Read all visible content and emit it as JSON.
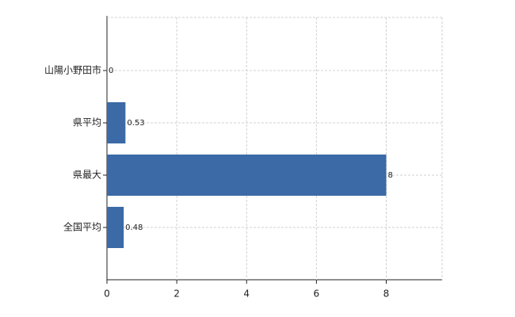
{
  "chart_data": {
    "type": "hbar",
    "categories": [
      "山陽小野田市",
      "県平均",
      "県最大",
      "全国平均"
    ],
    "values": [
      0,
      0.53,
      8,
      0.48
    ],
    "color": "#3b6aa6",
    "xlim": [
      0,
      9.6
    ],
    "xticks": [
      0,
      2,
      4,
      6,
      8
    ],
    "grid": true
  }
}
